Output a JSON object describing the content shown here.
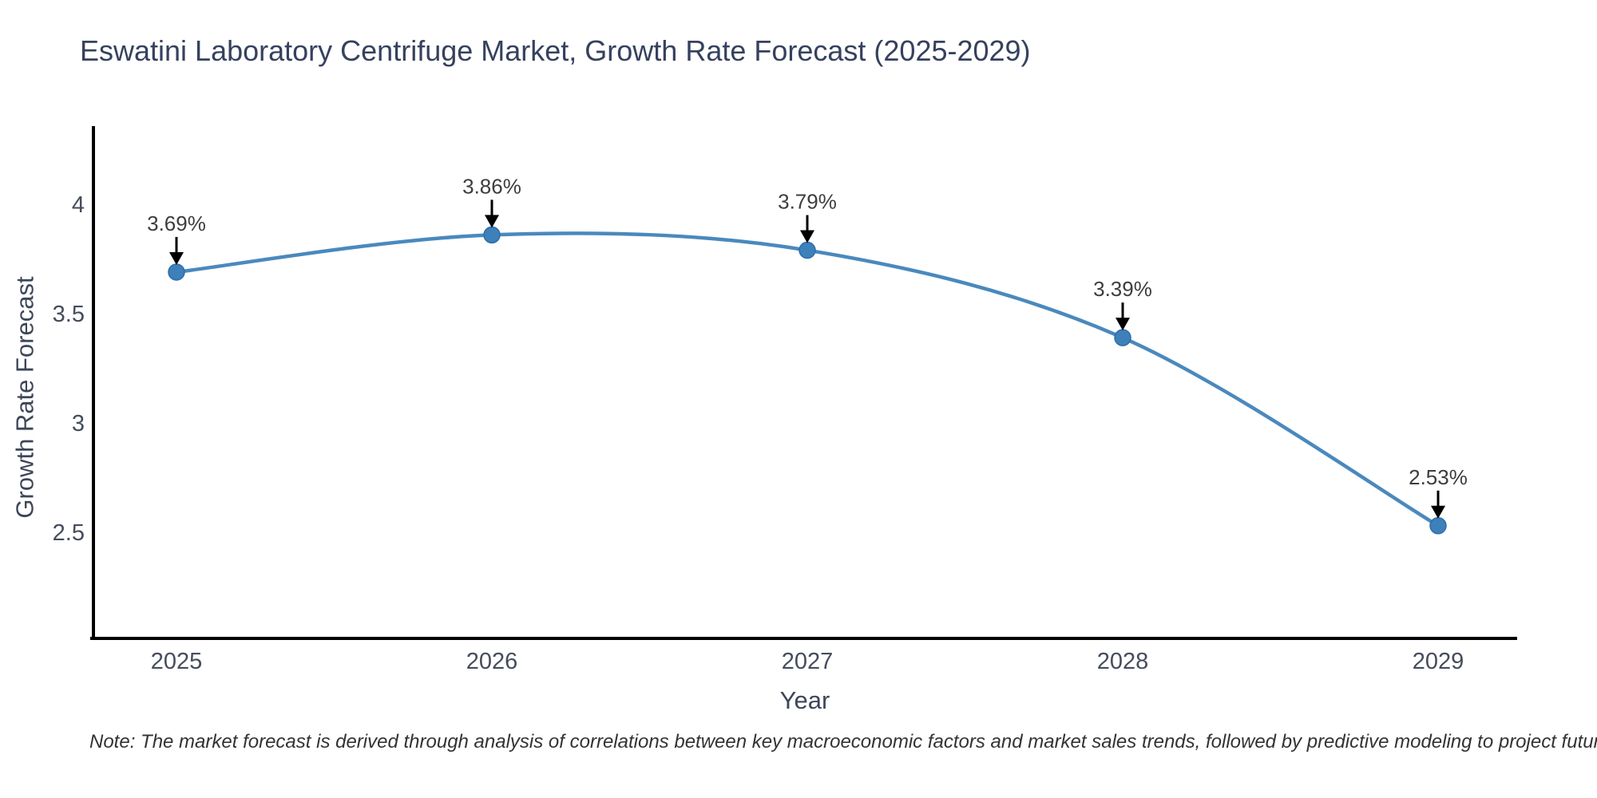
{
  "title": "Eswatini Laboratory Centrifuge Market, Growth Rate Forecast (2025-2029)",
  "note": "Note: The market forecast is derived through analysis of correlations between key macroeconomic factors and market sales trends, followed by predictive modeling to project future sales",
  "chart_data": {
    "type": "line",
    "title": "Eswatini Laboratory Centrifuge Market, Growth Rate Forecast (2025-2029)",
    "xlabel": "Year",
    "ylabel": "Growth Rate Forecast",
    "categories": [
      "2025",
      "2026",
      "2027",
      "2028",
      "2029"
    ],
    "series": [
      {
        "name": "Growth Rate Forecast",
        "values": [
          3.69,
          3.86,
          3.79,
          3.39,
          2.53
        ],
        "point_labels": [
          "3.69%",
          "3.86%",
          "3.79%",
          "3.39%",
          "2.53%"
        ]
      }
    ],
    "yticks": [
      2.5,
      3,
      3.5,
      4
    ],
    "ytick_labels": [
      "2.5",
      "3",
      "3.5",
      "4"
    ],
    "ylim": [
      2.0,
      4.35
    ],
    "grid": false,
    "legend": false,
    "annotations_have_arrows": true,
    "colors": {
      "line": "#4a89bd",
      "marker_fill": "#3d80ba",
      "marker_edge": "#2f6da8",
      "axis_line": "#000000",
      "tick_label": "#454c5c",
      "annotation_text": "#3d3d3d",
      "annotation_arrow": "#000000",
      "title_text": "#36415e",
      "background": "#ffffff"
    }
  }
}
